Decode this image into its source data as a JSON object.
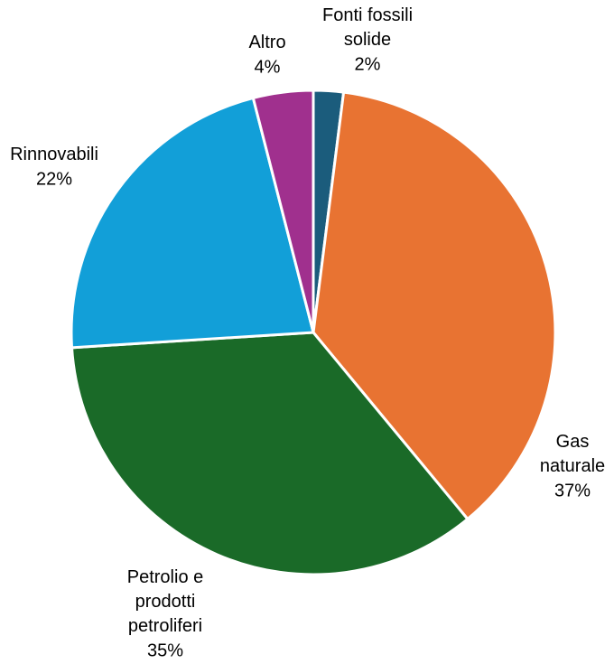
{
  "chart_data": {
    "type": "pie",
    "categories": [
      "Fonti fossili solide",
      "Gas naturale",
      "Petrolio e prodotti petroliferi",
      "Rinnovabili",
      "Altro"
    ],
    "values": [
      2,
      37,
      35,
      22,
      4
    ],
    "value_labels": [
      "2%",
      "37%",
      "35%",
      "22%",
      "4%"
    ],
    "colors": [
      "#1b5c7c",
      "#e87332",
      "#1a6a28",
      "#129fd8",
      "#a0308e"
    ]
  }
}
